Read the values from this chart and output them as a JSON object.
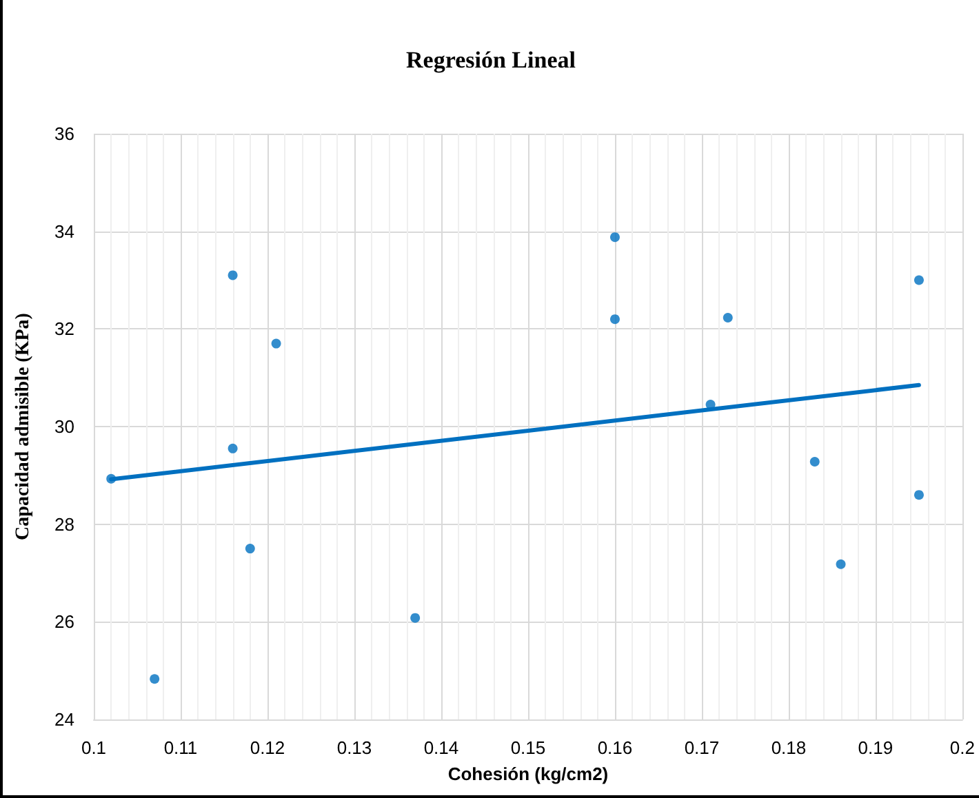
{
  "chart_data": {
    "type": "scatter",
    "title": "Regresión Lineal",
    "xlabel": "Cohesión (kg/cm2)",
    "ylabel": "Capacidad admisible (KPa)",
    "xlim": [
      0.1,
      0.2
    ],
    "xticks": [
      0.1,
      0.11,
      0.12,
      0.13,
      0.14,
      0.15,
      0.16,
      0.17,
      0.18,
      0.19,
      0.2
    ],
    "ylim": [
      24,
      36
    ],
    "yticks": [
      24,
      26,
      28,
      30,
      32,
      34,
      36
    ],
    "grid": true,
    "marker": "circle",
    "series": [
      {
        "color": "#0070c0",
        "x": [
          0.102,
          0.107,
          0.116,
          0.116,
          0.118,
          0.121,
          0.137,
          0.16,
          0.16,
          0.171,
          0.173,
          0.183,
          0.186,
          0.195,
          0.195
        ],
        "values": [
          28.93,
          24.83,
          33.1,
          29.55,
          27.5,
          31.7,
          26.08,
          33.88,
          32.2,
          30.45,
          32.23,
          29.28,
          27.18,
          33.0,
          28.6
        ]
      },
      {
        "type": "line",
        "color": "#0070c0",
        "line_style": "solid",
        "marker": "none",
        "x": [
          0.102,
          0.195
        ],
        "values": [
          28.92,
          30.85
        ]
      }
    ]
  }
}
